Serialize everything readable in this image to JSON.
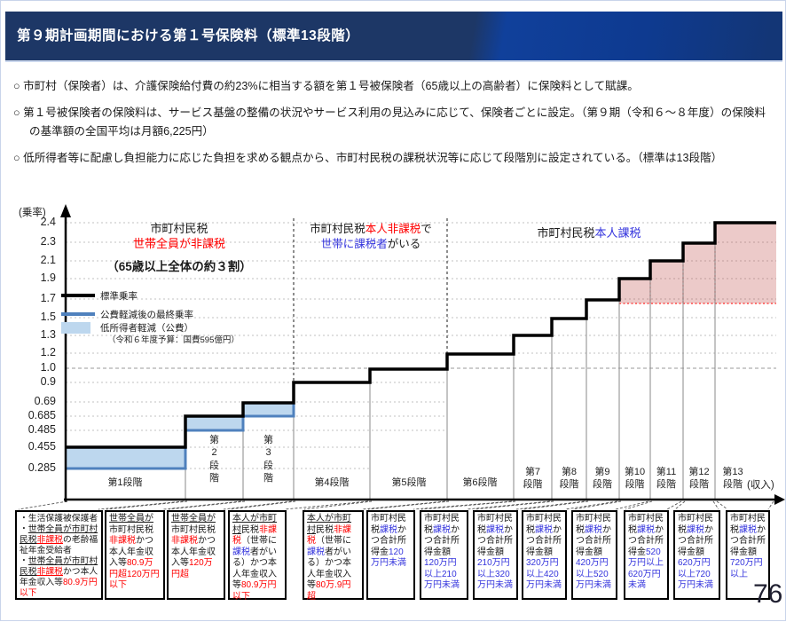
{
  "header": {
    "title": "第９期計画期間における第１号保険料（標準13段階）"
  },
  "bullets": [
    "○ 市町村（保険者）は、介護保険給付費の約23%に相当する額を第１号被保険者（65歳以上の高齢者）に保険料として賦課。",
    "○ 第１号被保険者の保険料は、サービス基盤の整備の状況やサービス利用の見込みに応じて、保険者ごとに設定。（第９期（令和６～８年度）の保険料の基準額の全国平均は月額6,225円）",
    "○ 低所得者等に配慮し負担能力に応じた負担を求める観点から、市町村民税の課税状況等に応じて段階別に設定されている。（標準は13段階）"
  ],
  "chart": {
    "y_unit": "(乗率)",
    "x_unit": "(収入)",
    "ytick_labels": [
      "2.4",
      "2.3",
      "2.1",
      "1.9",
      "1.7",
      "1.5",
      "1.3",
      "1.2",
      "1.0",
      "0.9",
      "0.69",
      "0.685",
      "0.485",
      "0.455",
      "0.285"
    ],
    "tier_labels": [
      "第1段階",
      "第\n2\n段\n階",
      "第\n3\n段\n階",
      "第4段階",
      "第5段階",
      "第6段階",
      "第7\n段階",
      "第8\n段階",
      "第9\n段階",
      "第10\n段階",
      "第11\n段階",
      "第12\n段階",
      "第13\n段階"
    ],
    "sections": {
      "nontax_household": {
        "line1": [
          {
            "t": "市町村民税"
          }
        ],
        "line2": [
          {
            "t": "世帯全員が非課税",
            "c": "#ff0000"
          }
        ],
        "line3": [
          {
            "t": "（65歳以上全体の約３割）",
            "b": true
          }
        ]
      },
      "nontax_person": {
        "line1": [
          {
            "t": "市町村民税"
          },
          {
            "t": "本人非課税",
            "c": "#ff0000"
          },
          {
            "t": "で"
          }
        ],
        "line2": [
          {
            "t": "世帯に課税者",
            "c": "#3434dd"
          },
          {
            "t": "がいる"
          }
        ]
      },
      "tax_person": {
        "line1": [
          {
            "t": "市町村民税"
          },
          {
            "t": "本人課税",
            "c": "#3434dd"
          }
        ]
      }
    },
    "legend": {
      "standard": "標準乗率",
      "reduced": "公費軽減後の最終乗率",
      "lowincome": "低所得者軽減（公費）",
      "lowincome_note": "（令和６年度予算：国費595億円）",
      "colors": {
        "standard": "#000000",
        "reduced": "#4f81bd",
        "lowincome_fill": "#bdd7ee",
        "highlight_fill": "#e7caca",
        "highlight_line": "#ff2a2a"
      }
    }
  },
  "chart_data": {
    "type": "step",
    "categories": [
      "第1段階",
      "第2段階",
      "第3段階",
      "第4段階",
      "第5段階",
      "第6段階",
      "第7段階",
      "第8段階",
      "第9段階",
      "第10段階",
      "第11段階",
      "第12段階",
      "第13段階"
    ],
    "series": [
      {
        "name": "標準乗率",
        "values": [
          0.455,
          0.685,
          0.69,
          0.9,
          1.0,
          1.2,
          1.3,
          1.5,
          1.7,
          1.9,
          2.1,
          2.3,
          2.4
        ]
      },
      {
        "name": "公費軽減後の最終乗率",
        "values": [
          0.285,
          0.485,
          0.685,
          null,
          null,
          null,
          null,
          null,
          null,
          null,
          null,
          null,
          null
        ]
      }
    ],
    "yticks": [
      2.4,
      2.3,
      2.1,
      1.9,
      1.7,
      1.5,
      1.3,
      1.2,
      1.0,
      0.9,
      0.69,
      0.685,
      0.485,
      0.455,
      0.285
    ],
    "ylim": [
      0,
      2.4
    ],
    "ylabel": "(乗率)",
    "xlabel": "(収入)",
    "grid": true,
    "legend_position": "upper-left",
    "highlight_region": {
      "tiers": [
        "第10段階",
        "第11段階",
        "第12段階",
        "第13段階"
      ],
      "above": 1.7
    }
  },
  "tier_boxes": [
    {
      "segments": [
        {
          "t": "・生活保護被保護者"
        },
        {
          "t": "\n・"
        },
        {
          "t": "世帯全員が市町村民税",
          "u": true
        },
        {
          "t": "非課税",
          "c": "#ff0000",
          "u": true
        },
        {
          "t": "の老齢福祉年金受給者"
        },
        {
          "t": "\n・"
        },
        {
          "t": "世帯全員が市町村民税",
          "u": true
        },
        {
          "t": "非課税",
          "c": "#ff0000",
          "u": true
        },
        {
          "t": "かつ本人年金収入等"
        },
        {
          "t": "80.9万円以下",
          "c": "#ff0000"
        }
      ]
    },
    {
      "segments": [
        {
          "t": "世帯全員が",
          "u": true
        },
        {
          "t": "市町村民税"
        },
        {
          "t": "非課税",
          "c": "#ff0000"
        },
        {
          "t": "かつ本人年金収入等"
        },
        {
          "t": "80.9万円超120万円以下",
          "c": "#ff0000"
        }
      ]
    },
    {
      "segments": [
        {
          "t": "世帯全員が",
          "u": true
        },
        {
          "t": "市町村民税"
        },
        {
          "t": "非課税",
          "c": "#ff0000"
        },
        {
          "t": "かつ本人年金収入等"
        },
        {
          "t": "120万円超",
          "c": "#ff0000"
        }
      ]
    },
    {
      "segments": [
        {
          "t": "本人が市町村",
          "u": true
        },
        {
          "t": "民税"
        },
        {
          "t": "非課税",
          "c": "#ff0000"
        },
        {
          "t": "（世帯に"
        },
        {
          "t": "課税",
          "c": "#3434dd"
        },
        {
          "t": "者がいる）かつ本人年金収入等"
        },
        {
          "t": "80.9万円以下",
          "c": "#ff0000"
        }
      ]
    },
    {
      "segments": [
        {
          "t": "本人が市町村",
          "u": true
        },
        {
          "t": "民税"
        },
        {
          "t": "非課税",
          "c": "#ff0000"
        },
        {
          "t": "（世帯に"
        },
        {
          "t": "課税",
          "c": "#3434dd"
        },
        {
          "t": "者がいる）かつ本人年金収入等"
        },
        {
          "t": "80万.9円超",
          "c": "#ff0000"
        }
      ]
    },
    {
      "segments": [
        {
          "t": "市町村民税"
        },
        {
          "t": "課税",
          "c": "#3434dd"
        },
        {
          "t": "かつ合計所得金"
        },
        {
          "t": "120万円未満",
          "c": "#3434dd"
        }
      ]
    },
    {
      "segments": [
        {
          "t": "市町村民税"
        },
        {
          "t": "課税",
          "c": "#3434dd"
        },
        {
          "t": "かつ合計所得金額"
        },
        {
          "t": "120万円以上210万円未満",
          "c": "#3434dd"
        }
      ]
    },
    {
      "segments": [
        {
          "t": "市町村民税"
        },
        {
          "t": "課税",
          "c": "#3434dd"
        },
        {
          "t": "かつ合計所得金額"
        },
        {
          "t": "210万円以上320万円未満",
          "c": "#3434dd"
        }
      ]
    },
    {
      "segments": [
        {
          "t": "市町村民税"
        },
        {
          "t": "課税",
          "c": "#3434dd"
        },
        {
          "t": "かつ合計所得金額"
        },
        {
          "t": "320万円以上420万円未満",
          "c": "#3434dd"
        }
      ]
    },
    {
      "segments": [
        {
          "t": "市町村民税"
        },
        {
          "t": "課税",
          "c": "#3434dd"
        },
        {
          "t": "かつ合計所得金額"
        },
        {
          "t": "420万円以上520万円未満",
          "c": "#3434dd"
        }
      ]
    },
    {
      "segments": [
        {
          "t": "市町村民税"
        },
        {
          "t": "課税",
          "c": "#3434dd"
        },
        {
          "t": "かつ合計所得金"
        },
        {
          "t": "520万円以上620万円未満",
          "c": "#3434dd"
        }
      ]
    },
    {
      "segments": [
        {
          "t": "市町村民税"
        },
        {
          "t": "課税",
          "c": "#3434dd"
        },
        {
          "t": "かつ合計所得金額"
        },
        {
          "t": "620万円以上720万円未満",
          "c": "#3434dd"
        }
      ]
    },
    {
      "segments": [
        {
          "t": "市町村民税"
        },
        {
          "t": "課税",
          "c": "#3434dd"
        },
        {
          "t": "かつ合計所得金額"
        },
        {
          "t": "720万円以上",
          "c": "#3434dd"
        }
      ]
    }
  ],
  "page_number": "76"
}
